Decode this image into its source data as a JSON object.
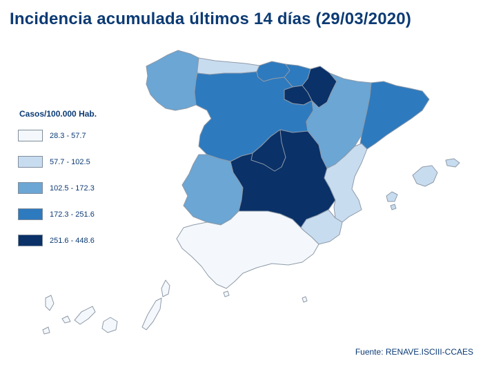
{
  "title": "Incidencia acumulada últimos 14 días (29/03/2020)",
  "legend": {
    "title": "Casos/100.000 Hab.",
    "items": [
      {
        "label": "28.3 - 57.7",
        "color": "#f4f8fc"
      },
      {
        "label": "57.7 - 102.5",
        "color": "#c8dcf0"
      },
      {
        "label": "102.5 - 172.3",
        "color": "#6ba6d4"
      },
      {
        "label": "172.3 - 251.6",
        "color": "#2e7abe"
      },
      {
        "label": "251.6 - 448.6",
        "color": "#0a3168"
      }
    ]
  },
  "source": "Fuente: RENAVE.ISCIII-CCAES",
  "map": {
    "regions": [
      {
        "name": "galicia",
        "class": 2
      },
      {
        "name": "asturias",
        "class": 1
      },
      {
        "name": "cantabria",
        "class": 3
      },
      {
        "name": "pais-vasco",
        "class": 3
      },
      {
        "name": "navarra",
        "class": 4
      },
      {
        "name": "la-rioja",
        "class": 4
      },
      {
        "name": "castilla-y-leon",
        "class": 3
      },
      {
        "name": "aragon",
        "class": 2
      },
      {
        "name": "cataluna",
        "class": 3
      },
      {
        "name": "extremadura",
        "class": 2
      },
      {
        "name": "castilla-la-mancha",
        "class": 4
      },
      {
        "name": "madrid",
        "class": 4
      },
      {
        "name": "comunidad-valenciana",
        "class": 1
      },
      {
        "name": "murcia",
        "class": 1
      },
      {
        "name": "andalucia",
        "class": 0
      },
      {
        "name": "baleares",
        "class": 1
      },
      {
        "name": "canarias",
        "class": 0
      },
      {
        "name": "ceuta",
        "class": 0
      },
      {
        "name": "melilla",
        "class": 0
      }
    ]
  }
}
